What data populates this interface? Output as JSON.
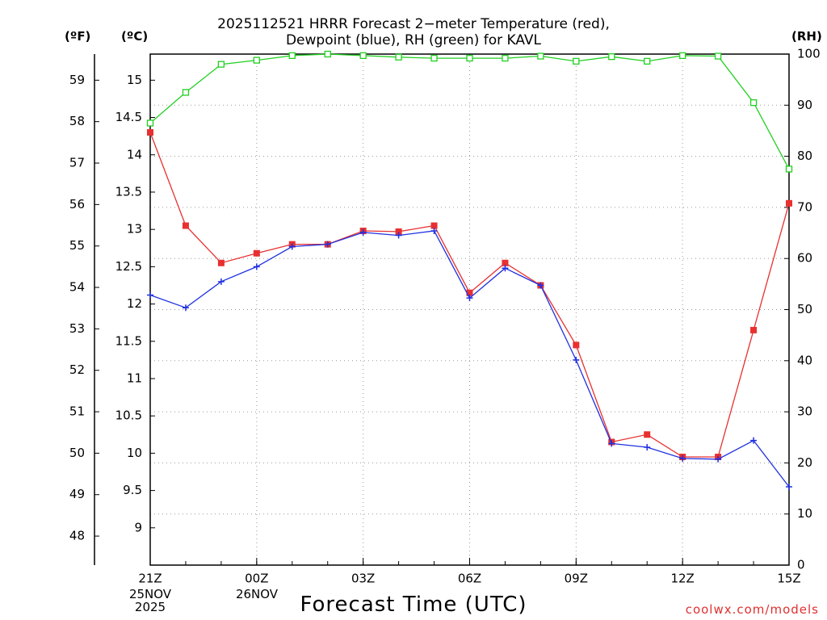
{
  "title_line1": "2025112521 HRRR Forecast 2−meter Temperature (red),",
  "title_line2": "Dewpoint (blue), RH (green) for KAVL",
  "unit_f": "(ºF)",
  "unit_c": "(ºC)",
  "unit_rh": "(RH)",
  "xlabel": "Forecast Time (UTC)",
  "credit": "coolwx.com/models",
  "date_labels": {
    "first": {
      "day": "25NOV",
      "year": "2025"
    },
    "second": {
      "day": "26NOV"
    }
  },
  "chart_data": {
    "type": "line",
    "x_hours": [
      0,
      1,
      2,
      3,
      4,
      5,
      6,
      7,
      8,
      9,
      10,
      11,
      12,
      13,
      14,
      15,
      16,
      17,
      18
    ],
    "xlim": [
      0,
      18
    ],
    "x_ticks": [
      {
        "hour": 0,
        "label": "21Z"
      },
      {
        "hour": 3,
        "label": "00Z"
      },
      {
        "hour": 6,
        "label": "03Z"
      },
      {
        "hour": 9,
        "label": "06Z"
      },
      {
        "hour": 12,
        "label": "09Z"
      },
      {
        "hour": 15,
        "label": "12Z"
      },
      {
        "hour": 18,
        "label": "15Z"
      }
    ],
    "y_celsius": {
      "ylim": [
        8.5,
        15.35
      ],
      "ticks": [
        9,
        9.5,
        10,
        10.5,
        11,
        11.5,
        12,
        12.5,
        13,
        13.5,
        14,
        14.5,
        15
      ]
    },
    "y_fahrenheit": {
      "ticks": [
        48,
        49,
        50,
        51,
        52,
        53,
        54,
        55,
        56,
        57,
        58,
        59
      ]
    },
    "y_rh": {
      "ylim": [
        0,
        100
      ],
      "ticks": [
        0,
        10,
        20,
        30,
        40,
        50,
        60,
        70,
        80,
        90,
        100
      ]
    },
    "grid": true,
    "series": [
      {
        "key": "temperature",
        "color": "#e83030",
        "marker": "filled-square",
        "axis": "celsius",
        "values": [
          14.3,
          13.05,
          12.55,
          12.68,
          12.8,
          12.8,
          12.98,
          12.97,
          13.05,
          12.15,
          12.55,
          12.25,
          11.45,
          10.15,
          10.25,
          9.95,
          9.95,
          11.65,
          13.35
        ]
      },
      {
        "key": "dewpoint",
        "color": "#2030e0",
        "marker": "plus",
        "axis": "celsius",
        "values": [
          12.12,
          11.95,
          12.3,
          12.5,
          12.77,
          12.8,
          12.96,
          12.92,
          12.98,
          12.08,
          12.48,
          12.25,
          11.25,
          10.13,
          10.08,
          9.93,
          9.92,
          10.17,
          9.55
        ]
      },
      {
        "key": "rh",
        "color": "#20d020",
        "marker": "open-square",
        "axis": "rh",
        "values": [
          86.5,
          92.5,
          98,
          98.8,
          99.7,
          100,
          99.7,
          99.4,
          99.2,
          99.2,
          99.2,
          99.6,
          98.6,
          99.5,
          98.6,
          99.7,
          99.6,
          90.5,
          77.5
        ]
      }
    ]
  }
}
